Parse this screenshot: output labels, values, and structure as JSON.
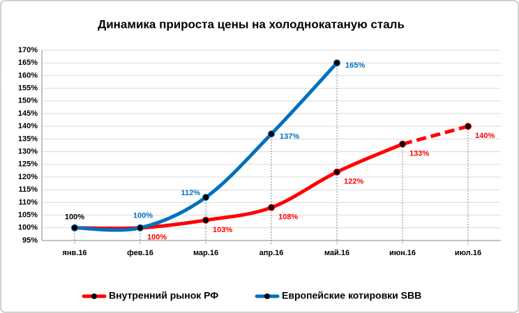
{
  "chart_data": {
    "type": "line",
    "title": "Динамика прироста цены на холоднокатаную сталь",
    "categories": [
      "янв.16",
      "фев.16",
      "мар.16",
      "апр.16",
      "май.16",
      "июн.16",
      "июл.16"
    ],
    "series": [
      {
        "name": "Внутренний рынок РФ",
        "color": "#ff0000",
        "values": [
          100,
          100,
          103,
          108,
          122,
          133,
          140
        ],
        "value_labels": [
          "100%",
          "100%",
          "103%",
          "108%",
          "122%",
          "133%",
          "140%"
        ],
        "last_segment_dashed": true
      },
      {
        "name": "Европейские котировки SBB",
        "color": "#0070c0",
        "values": [
          100,
          100,
          112,
          137,
          165,
          null,
          null
        ],
        "value_labels": [
          null,
          "100%",
          "112%",
          "137%",
          "165%",
          null,
          null
        ]
      }
    ],
    "ylim": [
      95,
      170
    ],
    "yticks": [
      {
        "value": 95,
        "label": "95%"
      },
      {
        "value": 100,
        "label": "100%"
      },
      {
        "value": 105,
        "label": "105%"
      },
      {
        "value": 110,
        "label": "110%"
      },
      {
        "value": 115,
        "label": "115%"
      },
      {
        "value": 120,
        "label": "120%"
      },
      {
        "value": 125,
        "label": "125%"
      },
      {
        "value": 130,
        "label": "130%"
      },
      {
        "value": 135,
        "label": "135%"
      },
      {
        "value": 140,
        "label": "140%"
      },
      {
        "value": 145,
        "label": "145%"
      },
      {
        "value": 150,
        "label": "150%"
      },
      {
        "value": 155,
        "label": "155%"
      },
      {
        "value": 160,
        "label": "160%"
      },
      {
        "value": 165,
        "label": "165%"
      },
      {
        "value": 170,
        "label": "170%"
      }
    ],
    "grid": true,
    "legend": "bottom"
  }
}
